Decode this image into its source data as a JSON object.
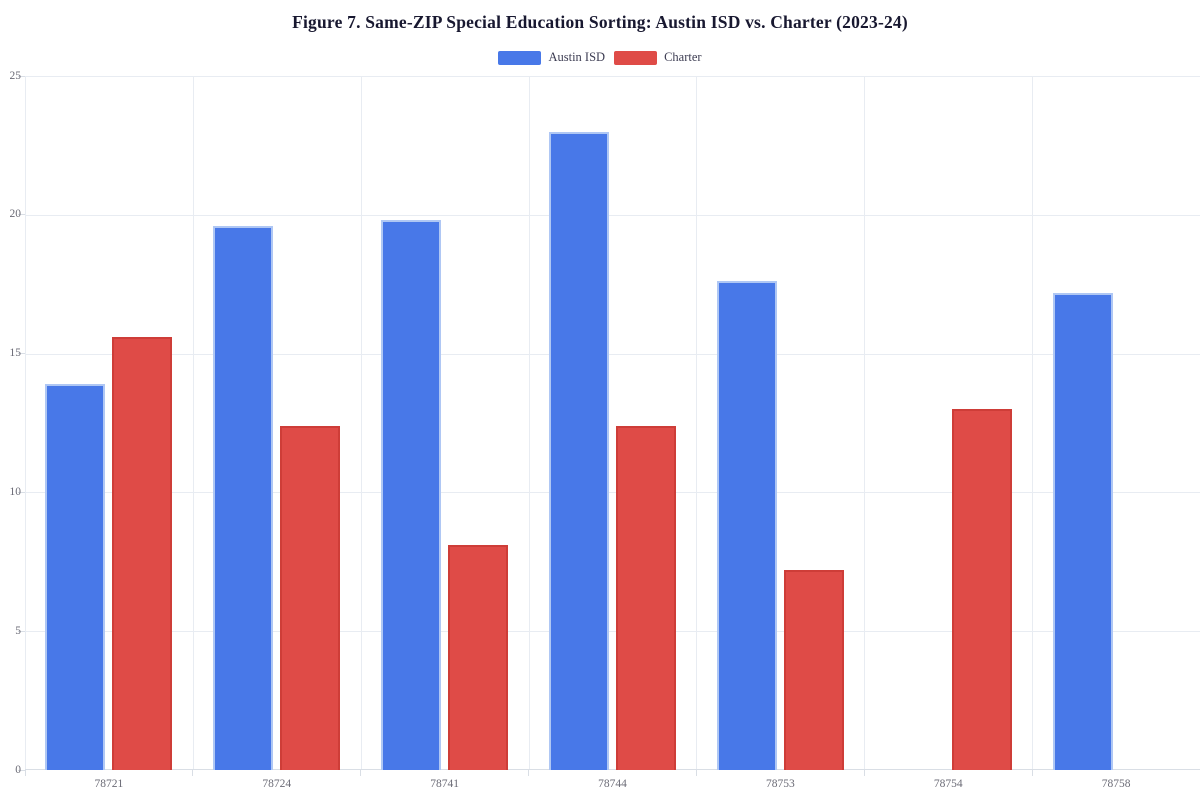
{
  "chart_data": {
    "type": "bar",
    "title": "Figure 7. Same-ZIP Special Education Sorting: Austin ISD vs. Charter (2023-24)",
    "categories": [
      "78721",
      "78724",
      "78741",
      "78744",
      "78753",
      "78754",
      "78758"
    ],
    "series": [
      {
        "name": "Austin ISD",
        "color": "#4878E8",
        "border_color": "#AFC7F4",
        "values": [
          13.9,
          19.6,
          19.8,
          23.0,
          17.6,
          null,
          17.2
        ]
      },
      {
        "name": "Charter",
        "color": "#DF4B47",
        "border_color": "#CE3D38",
        "values": [
          15.6,
          12.4,
          8.1,
          12.4,
          7.2,
          13.0,
          null
        ]
      }
    ],
    "xlabel": "",
    "ylabel": "",
    "ylim": [
      0,
      25
    ],
    "yticks": [
      0,
      5,
      10,
      15,
      20,
      25
    ],
    "grid": true,
    "legend_position": "top",
    "colors": {
      "title_text": "#181830",
      "legend_text": "#3c3c52",
      "axis_text": "#6a6a75",
      "gridline": "#e8ecf2",
      "axis_line": "#d9dee5",
      "background": "#ffffff"
    }
  }
}
